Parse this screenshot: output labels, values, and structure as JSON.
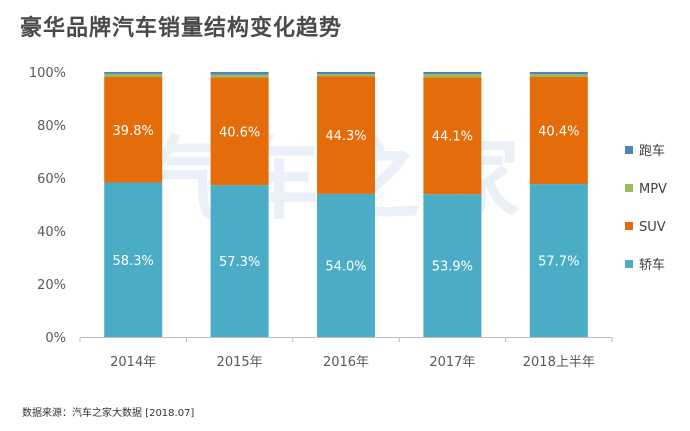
{
  "title": "豪华品牌汽车销量结构变化趋势",
  "source": "数据来源：汽车之家大数据 [2018.07]",
  "watermark": "汽车之家",
  "chart_data": {
    "type": "bar",
    "stacked": true,
    "categories": [
      "2014年",
      "2015年",
      "2016年",
      "2017年",
      "2018上半年"
    ],
    "series": [
      {
        "name": "轿车",
        "color": "#4bacc6",
        "values": [
          58.3,
          57.3,
          54.0,
          53.9,
          57.7
        ],
        "labels": [
          "58.3%",
          "57.3%",
          "54.0%",
          "53.9%",
          "57.7%"
        ]
      },
      {
        "name": "SUV",
        "color": "#e46c0a",
        "values": [
          39.8,
          40.6,
          44.3,
          44.1,
          40.4
        ],
        "labels": [
          "39.8%",
          "40.6%",
          "44.3%",
          "44.1%",
          "40.4%"
        ]
      },
      {
        "name": "MPV",
        "color": "#9bbb59",
        "values": [
          1.2,
          1.1,
          0.9,
          1.2,
          1.1
        ],
        "labels": []
      },
      {
        "name": "跑车",
        "color": "#4f81bd",
        "values": [
          0.7,
          1.0,
          0.8,
          0.8,
          0.8
        ],
        "labels": []
      }
    ],
    "ylim": [
      0,
      100
    ],
    "yticks": [
      "0%",
      "20%",
      "40%",
      "60%",
      "80%",
      "100%"
    ],
    "legend_position": "right",
    "legend_order": [
      "跑车",
      "MPV",
      "SUV",
      "轿车"
    ],
    "grid": false
  }
}
